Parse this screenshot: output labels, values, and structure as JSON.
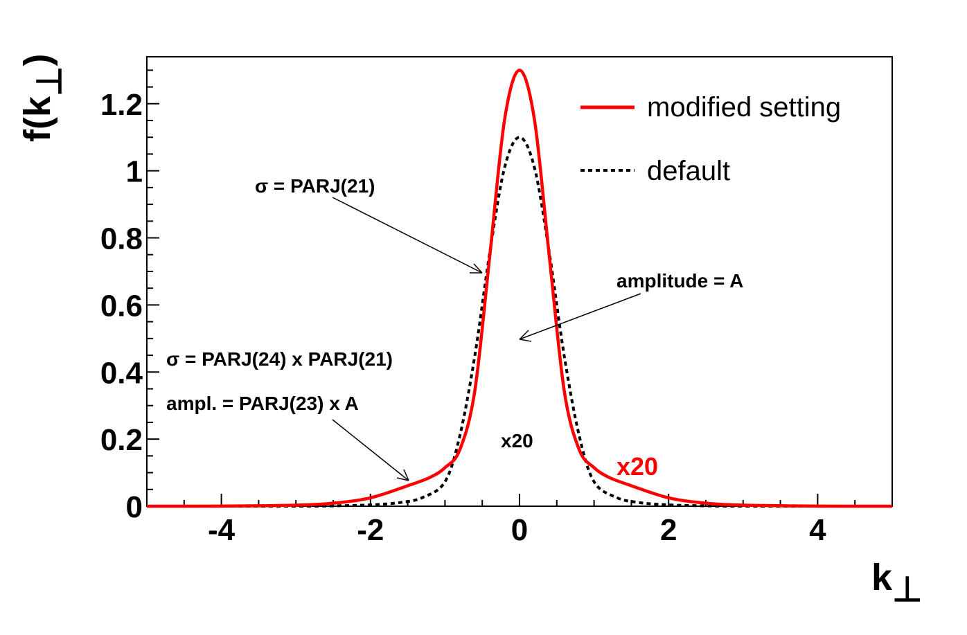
{
  "chart_data": {
    "type": "line",
    "title": "",
    "xlabel": "k",
    "xlabel_sub": "⊥",
    "ylabel": "f(k",
    "ylabel_sub": "⊥",
    "ylabel_close": ")",
    "xlim": [
      -5,
      5
    ],
    "ylim": [
      0,
      1.34
    ],
    "x_ticks": [
      -4,
      -2,
      0,
      2,
      4
    ],
    "x_tick_labels": [
      "-4",
      "-2",
      "0",
      "2",
      "4"
    ],
    "y_ticks": [
      0,
      0.2,
      0.4,
      0.6,
      0.8,
      1,
      1.2
    ],
    "y_tick_labels": [
      "0",
      "0.2",
      "0.4",
      "0.6",
      "0.8",
      "1",
      "1.2"
    ],
    "grid": false,
    "legend_position": "top-right",
    "series": [
      {
        "name": "modified setting",
        "color": "#ff0000",
        "style": "solid",
        "x": [
          -5,
          -4,
          -3,
          -2.5,
          -2,
          -1.5,
          -1.2,
          -1,
          -0.8,
          -0.6,
          -0.4,
          -0.2,
          0,
          0.2,
          0.4,
          0.6,
          0.8,
          1,
          1.2,
          1.5,
          2,
          2.5,
          3,
          4,
          5
        ],
        "y": [
          0,
          0.0003,
          0.003,
          0.009,
          0.025,
          0.061,
          0.086,
          0.115,
          0.169,
          0.344,
          0.744,
          1.153,
          1.3,
          1.153,
          0.744,
          0.344,
          0.169,
          0.115,
          0.086,
          0.061,
          0.025,
          0.009,
          0.003,
          0.0003,
          0
        ]
      },
      {
        "name": "default",
        "color": "#000000",
        "style": "dotted",
        "x": [
          -5,
          -3,
          -2.5,
          -2,
          -1.6,
          -1.3,
          -1,
          -0.8,
          -0.6,
          -0.4,
          -0.2,
          0,
          0.2,
          0.4,
          0.6,
          0.8,
          1,
          1.3,
          1.6,
          2,
          2.5,
          3,
          5
        ],
        "y": [
          0,
          0.0001,
          0.001,
          0.004,
          0.011,
          0.026,
          0.073,
          0.211,
          0.448,
          0.755,
          1.01,
          1.1,
          1.01,
          0.755,
          0.448,
          0.211,
          0.073,
          0.026,
          0.011,
          0.004,
          0.001,
          0.0001,
          0
        ]
      }
    ],
    "annotations": {
      "sigma_main": "σ = PARJ(21)",
      "amplitude": "amplitude = A",
      "sigma_wide": "σ = PARJ(24) x PARJ(21)",
      "ampl_wide": "ampl. = PARJ(23) x A",
      "x20_black": "x20",
      "x20_red": "x20"
    }
  }
}
